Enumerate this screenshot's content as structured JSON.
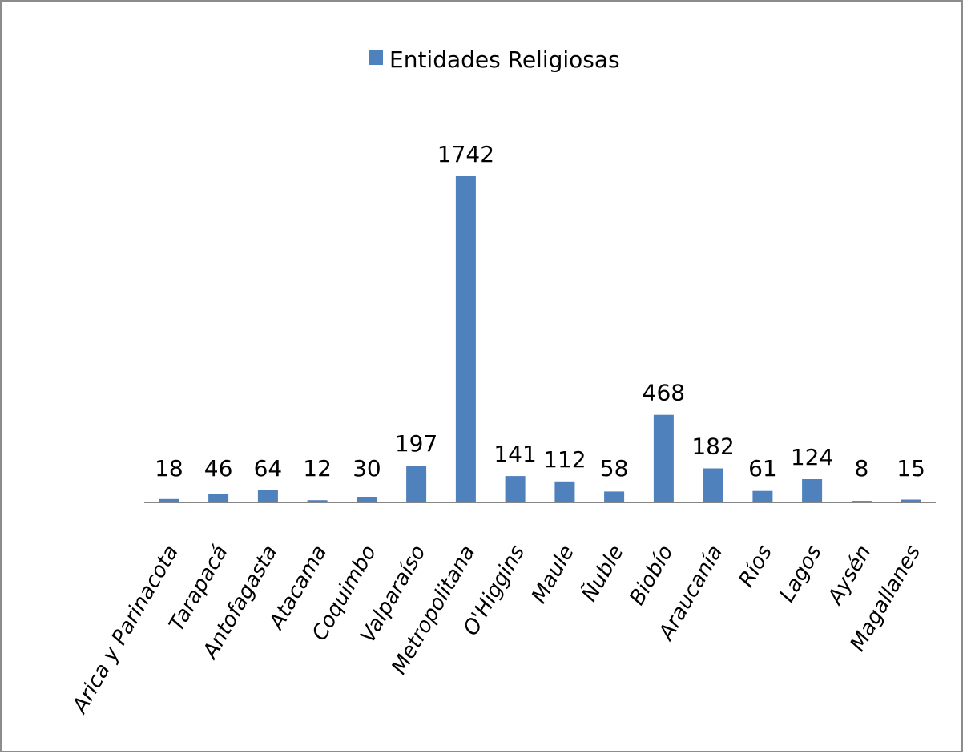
{
  "chart_data": {
    "type": "bar",
    "categories": [
      "Arica y Parinacota",
      "Tarapacá",
      "Antofagasta",
      "Atacama",
      "Coquimbo",
      "Valparaíso",
      "Metropolitana",
      "O'Higgins",
      "Maule",
      "Ñuble",
      "Biobío",
      "Araucanía",
      "Ríos",
      "Lagos",
      "Aysén",
      "Magallanes"
    ],
    "series": [
      {
        "name": "Entidades Religiosas",
        "values": [
          18,
          46,
          64,
          12,
          30,
          197,
          1742,
          141,
          112,
          58,
          468,
          182,
          61,
          124,
          8,
          15
        ],
        "color": "#4f81bd"
      }
    ],
    "data_labels": [
      "18",
      "46",
      "64",
      "12",
      "30",
      "197",
      "1742",
      "141",
      "112",
      "58",
      "468",
      "182",
      "61",
      "124",
      "8",
      "15"
    ],
    "legend": "top-center",
    "grid": false,
    "ylim": [
      0,
      1742
    ],
    "axis_color": "#868686"
  }
}
